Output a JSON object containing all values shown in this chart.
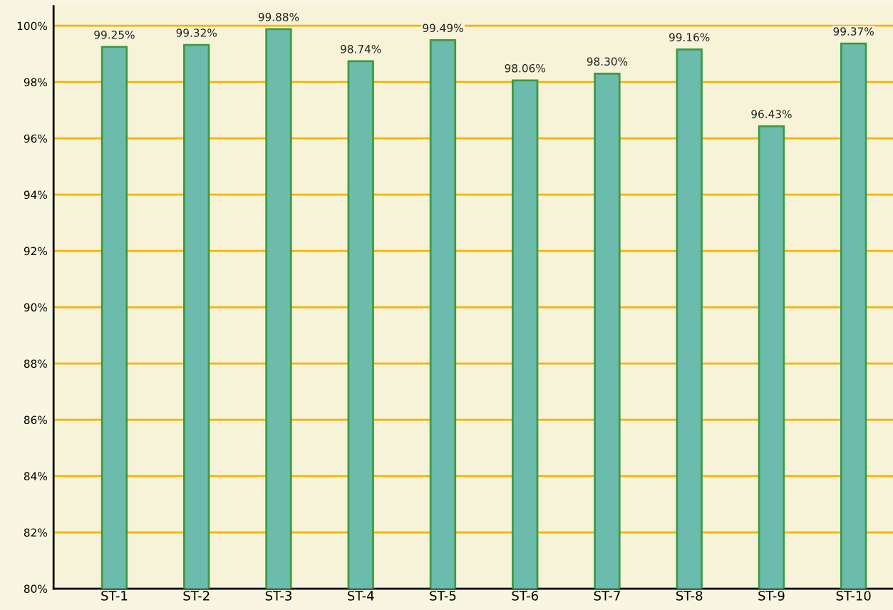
{
  "chart_data": {
    "type": "bar",
    "categories": [
      "ST-1",
      "ST-2",
      "ST-3",
      "ST-4",
      "ST-5",
      "ST-6",
      "ST-7",
      "ST-8",
      "ST-9",
      "ST-10"
    ],
    "values": [
      99.25,
      99.32,
      99.88,
      98.74,
      99.49,
      98.06,
      98.3,
      99.16,
      96.43,
      99.37
    ],
    "color": "#6cbcae",
    "value_labels": [
      "99.25%",
      "99.32%",
      "99.88%",
      "98.74%",
      "99.49%",
      "98.06%",
      "98.30%",
      "99.16%",
      "96.43%",
      "99.37%"
    ],
    "ylim": [
      80,
      100.7
    ],
    "yticks": [
      {
        "value": 80,
        "label": "80%"
      },
      {
        "value": 82,
        "label": "82%"
      },
      {
        "value": 84,
        "label": "84%"
      },
      {
        "value": 86,
        "label": "86%"
      },
      {
        "value": 88,
        "label": "88%"
      },
      {
        "value": 90,
        "label": "90%"
      },
      {
        "value": 92,
        "label": "92%"
      },
      {
        "value": 94,
        "label": "94%"
      },
      {
        "value": 96,
        "label": "96%"
      },
      {
        "value": 98,
        "label": "98%"
      },
      {
        "value": 100,
        "label": "100%"
      }
    ],
    "grid": "y"
  }
}
